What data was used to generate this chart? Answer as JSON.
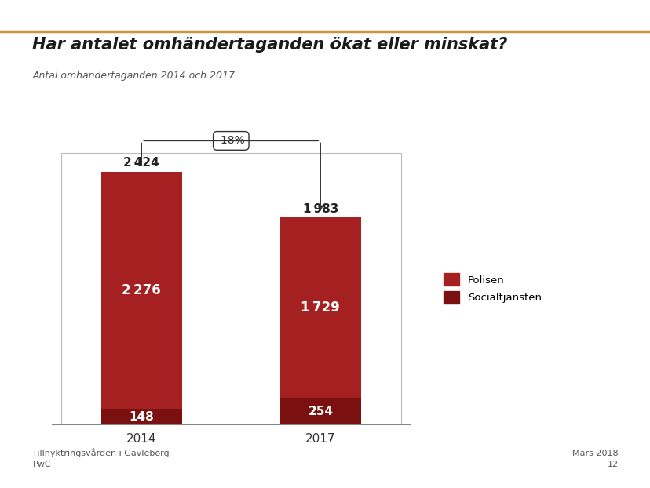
{
  "title": "Har antalet omhändertaganden ökat eller minskat?",
  "subtitle": "Antal omhändertaganden 2014 och 2017",
  "categories": [
    "2014",
    "2017"
  ],
  "polisen_values": [
    2276,
    1729
  ],
  "socialtjansten_values": [
    148,
    254
  ],
  "totals": [
    2424,
    1983
  ],
  "polisen_color": "#A52020",
  "socialtjansten_color": "#7B1010",
  "change_label": "-18%",
  "footer_left": "Tillnyktringsvården i Gävleborg\nPwC",
  "footer_right": "Mars 2018\n12",
  "background_color": "#FFFFFF",
  "bar_width": 0.45,
  "legend_labels": [
    "Polisen",
    "Socialtjänsten"
  ],
  "title_color": "#1a1a1a",
  "subtitle_color": "#555555",
  "footer_color": "#555555",
  "gold_line_color": "#C8963E"
}
